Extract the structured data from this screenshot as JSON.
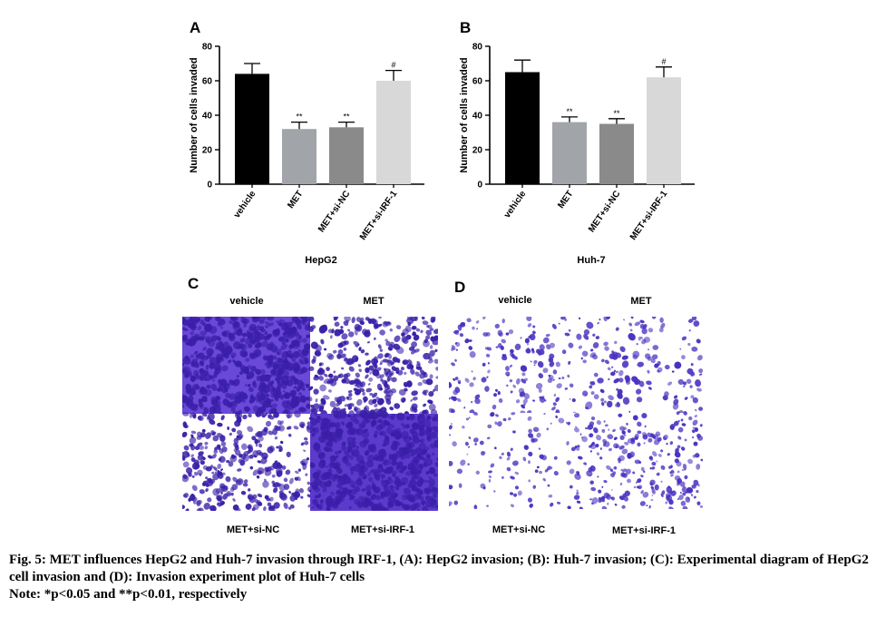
{
  "figure": {
    "panel_c_letter": "C",
    "panel_d_letter": "D",
    "caption_line1": "Fig. 5: MET influences HepG2 and Huh-7 invasion through IRF-1, (A): HepG2 invasion; (B): Huh-7 invasion; (C): Experimental diagram of HepG2 cell invasion and (D): Invasion experiment plot of Huh-7 cells",
    "caption_note": "Note: *p<0.05 and **p<0.01, respectively"
  },
  "chart_data": [
    {
      "type": "bar",
      "panel": "A",
      "title": "HepG2",
      "ylabel": "Number of cells invaded",
      "xlabel": "",
      "categories": [
        "vehicle",
        "MET",
        "MET+si-NC",
        "MET+si-IRF-1"
      ],
      "values": [
        64,
        32,
        33,
        60
      ],
      "errors": [
        6,
        4,
        3,
        6
      ],
      "annotations": [
        "",
        "**",
        "**",
        "#"
      ],
      "colors": [
        "#000000",
        "#a1a4a8",
        "#8a8a8a",
        "#d8d8d8"
      ],
      "ylim": [
        0,
        80
      ],
      "yticks": [
        0,
        20,
        40,
        60,
        80
      ],
      "grid": false,
      "legend": "none"
    },
    {
      "type": "bar",
      "panel": "B",
      "title": "Huh-7",
      "ylabel": "Number of cells invaded",
      "xlabel": "",
      "categories": [
        "vehicle",
        "MET",
        "MET+si-NC",
        "MET+si-IRF-1"
      ],
      "values": [
        65,
        36,
        35,
        62
      ],
      "errors": [
        7,
        3,
        3,
        6
      ],
      "annotations": [
        "",
        "**",
        "**",
        "#"
      ],
      "colors": [
        "#000000",
        "#a1a4a8",
        "#8a8a8a",
        "#d8d8d8"
      ],
      "ylim": [
        0,
        80
      ],
      "yticks": [
        0,
        20,
        40,
        60,
        80
      ],
      "grid": false,
      "legend": "none"
    }
  ],
  "micrographs": {
    "hepg2": {
      "top_left": "vehicle",
      "top_right": "MET",
      "bottom_left": "MET+si-NC",
      "bottom_right": "MET+si-IRF-1",
      "stain_color": "#5a36c8"
    },
    "huh7": {
      "top_left": "vehicle",
      "top_right": "MET",
      "bottom_left": "MET+si-NC",
      "bottom_right": "MET+si-IRF-1",
      "stain_color": "#4a30c0"
    }
  }
}
